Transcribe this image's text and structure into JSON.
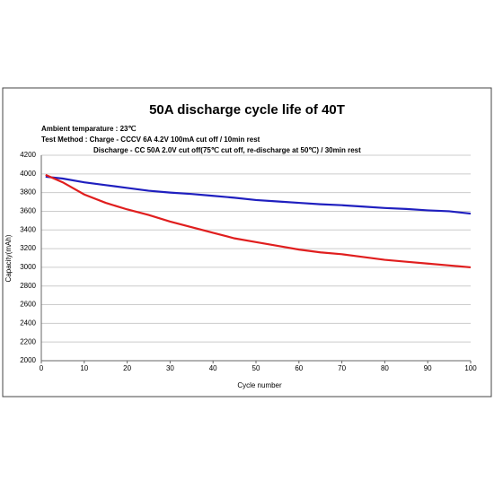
{
  "chart_data": {
    "type": "line",
    "title": "50A discharge cycle life of 40T",
    "annotations": [
      "Ambient temparature : 23℃",
      "Test Method : Charge - CCCV 6A 4.2V 100mA cut off /  10min rest",
      "Discharge - CC 50A 2.0V cut off(75℃ cut off,  re-discharge at 50℃) / 30min rest"
    ],
    "x_label": "Cycle number",
    "y_label": "Capacity(mAh)",
    "x": [
      1,
      5,
      10,
      15,
      20,
      25,
      30,
      35,
      40,
      45,
      50,
      55,
      60,
      65,
      70,
      75,
      80,
      85,
      90,
      95,
      100
    ],
    "series": [
      {
        "color": "#1f1fbf",
        "values": [
          3970,
          3950,
          3910,
          3880,
          3850,
          3820,
          3800,
          3785,
          3765,
          3745,
          3720,
          3705,
          3690,
          3675,
          3665,
          3650,
          3635,
          3625,
          3610,
          3600,
          3575
        ]
      },
      {
        "color": "#e01e1e",
        "values": [
          3990,
          3910,
          3780,
          3690,
          3620,
          3560,
          3490,
          3430,
          3370,
          3310,
          3270,
          3230,
          3190,
          3160,
          3140,
          3110,
          3080,
          3060,
          3040,
          3020,
          3000
        ]
      }
    ],
    "xlim": [
      0,
      100
    ],
    "xticks": [
      0,
      10,
      20,
      30,
      40,
      50,
      60,
      70,
      80,
      90,
      100
    ],
    "ylim": [
      2000,
      4200
    ],
    "yticks": [
      2000,
      2200,
      2400,
      2600,
      2800,
      3000,
      3200,
      3400,
      3600,
      3800,
      4000,
      4200
    ],
    "grid": true
  }
}
